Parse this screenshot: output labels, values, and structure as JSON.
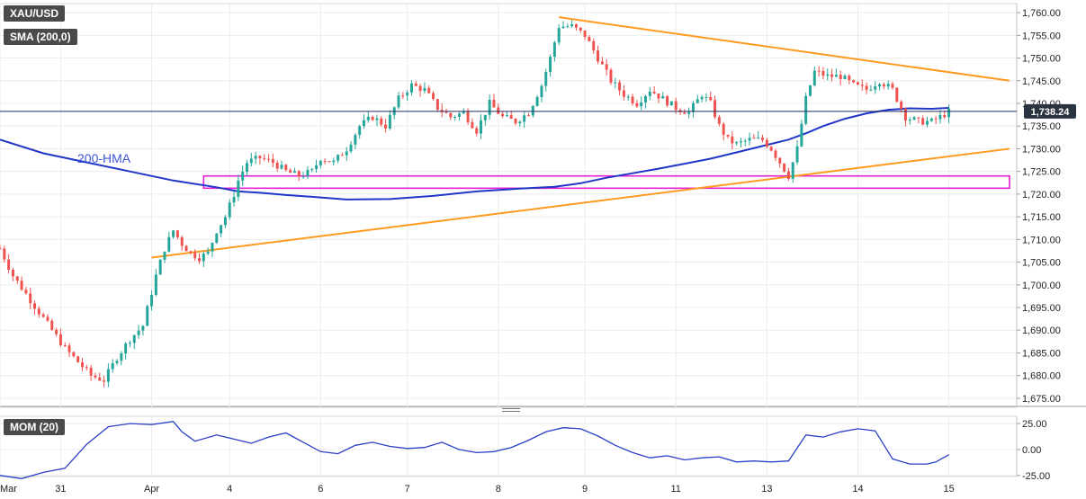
{
  "header": {
    "symbol": "XAU/USD",
    "indicator": "SMA (200,0)",
    "momentum": "MOM (20)"
  },
  "annotations": {
    "hma_label": "200-HMA",
    "last_price": "1,738.24"
  },
  "colors": {
    "up": "#26a69a",
    "down": "#ef5350",
    "hma": "#1f36c7",
    "trendline": "#ff9a1f",
    "zone": "#e61ed6",
    "momentum_line": "#2b3fc7",
    "price_line": "#1f2a66",
    "last_price_bg": "#2a3340"
  },
  "chart_data": [
    {
      "type": "candlestick",
      "series_name": "XAU/USD",
      "ylim": [
        1673,
        1762
      ],
      "y_ticks": [
        "1,760.00",
        "1,755.00",
        "1,750.00",
        "1,745.00",
        "1,740.00",
        "1,735.00",
        "1,730.00",
        "1,725.00",
        "1,720.00",
        "1,715.00",
        "1,710.00",
        "1,705.00",
        "1,700.00",
        "1,695.00",
        "1,690.00",
        "1,685.00",
        "1,680.00",
        "1,675.00"
      ],
      "x_labels": [
        "Mar",
        "31",
        "Apr",
        "4",
        "6",
        "7",
        "8",
        "9",
        "11",
        "13",
        "14",
        "15"
      ],
      "last_price": 1738.24,
      "price_path": [
        [
          0,
          1708
        ],
        [
          3,
          1702
        ],
        [
          6,
          1698
        ],
        [
          9,
          1694
        ],
        [
          12,
          1690
        ],
        [
          15,
          1686
        ],
        [
          18,
          1683
        ],
        [
          21,
          1680
        ],
        [
          24,
          1679
        ],
        [
          27,
          1684
        ],
        [
          30,
          1688
        ],
        [
          33,
          1691
        ],
        [
          36,
          1702
        ],
        [
          38,
          1708
        ],
        [
          40,
          1712
        ],
        [
          42,
          1709
        ],
        [
          44,
          1707
        ],
        [
          46,
          1706
        ],
        [
          48,
          1707
        ],
        [
          50,
          1712
        ],
        [
          52,
          1715
        ],
        [
          54,
          1720
        ],
        [
          55,
          1723
        ],
        [
          57,
          1727
        ],
        [
          60,
          1728
        ],
        [
          63,
          1727
        ],
        [
          66,
          1725
        ],
        [
          69,
          1724
        ],
        [
          72,
          1725
        ],
        [
          74,
          1728
        ],
        [
          77,
          1727
        ],
        [
          80,
          1730
        ],
        [
          83,
          1735
        ],
        [
          86,
          1737
        ],
        [
          89,
          1735
        ],
        [
          92,
          1741
        ],
        [
          95,
          1744
        ],
        [
          98,
          1743
        ],
        [
          101,
          1739
        ],
        [
          104,
          1737
        ],
        [
          107,
          1738
        ],
        [
          110,
          1734
        ],
        [
          113,
          1740
        ],
        [
          116,
          1737
        ],
        [
          119,
          1736
        ],
        [
          122,
          1738
        ],
        [
          125,
          1744
        ],
        [
          127,
          1750
        ],
        [
          129,
          1757
        ],
        [
          132,
          1757
        ],
        [
          135,
          1755
        ],
        [
          138,
          1750
        ],
        [
          141,
          1745
        ],
        [
          144,
          1742
        ],
        [
          147,
          1740
        ],
        [
          150,
          1743
        ],
        [
          153,
          1741
        ],
        [
          156,
          1739
        ],
        [
          159,
          1738
        ],
        [
          162,
          1742
        ],
        [
          164,
          1740
        ],
        [
          166,
          1735
        ],
        [
          168,
          1732
        ],
        [
          170,
          1731
        ],
        [
          173,
          1732
        ],
        [
          176,
          1732
        ],
        [
          178,
          1730
        ],
        [
          180,
          1727
        ],
        [
          182,
          1724
        ],
        [
          184,
          1730
        ],
        [
          186,
          1741
        ],
        [
          188,
          1747
        ],
        [
          191,
          1746
        ],
        [
          194,
          1746
        ],
        [
          197,
          1744
        ],
        [
          200,
          1743
        ],
        [
          203,
          1745
        ],
        [
          206,
          1743
        ],
        [
          209,
          1737
        ],
        [
          212,
          1736
        ],
        [
          215,
          1736
        ],
        [
          217,
          1737
        ],
        [
          219,
          1738.2
        ]
      ],
      "hma_path": [
        [
          0,
          1732
        ],
        [
          10,
          1729
        ],
        [
          20,
          1727
        ],
        [
          30,
          1725
        ],
        [
          40,
          1723
        ],
        [
          50,
          1721.5
        ],
        [
          55,
          1720.6
        ],
        [
          60,
          1720.3
        ],
        [
          66,
          1719.8
        ],
        [
          72,
          1719.4
        ],
        [
          80,
          1718.8
        ],
        [
          90,
          1718.9
        ],
        [
          100,
          1719.6
        ],
        [
          110,
          1720.6
        ],
        [
          120,
          1721.2
        ],
        [
          128,
          1721.6
        ],
        [
          134,
          1722.4
        ],
        [
          140,
          1723.6
        ],
        [
          146,
          1724.6
        ],
        [
          152,
          1725.6
        ],
        [
          158,
          1726.7
        ],
        [
          164,
          1727.8
        ],
        [
          170,
          1729.2
        ],
        [
          176,
          1730.6
        ],
        [
          182,
          1732.0
        ],
        [
          186,
          1733.4
        ],
        [
          190,
          1735.0
        ],
        [
          195,
          1736.6
        ],
        [
          200,
          1737.8
        ],
        [
          205,
          1738.6
        ],
        [
          210,
          1738.9
        ],
        [
          215,
          1738.8
        ],
        [
          219,
          1739.0
        ]
      ],
      "lines": [
        {
          "name": "resistance",
          "from": [
            129,
            1759
          ],
          "to": [
            233,
            1745
          ]
        },
        {
          "name": "support",
          "from": [
            35,
            1706
          ],
          "to": [
            233,
            1730
          ]
        }
      ],
      "zones": [
        {
          "name": "support-zone",
          "x0": 47,
          "x1": 233,
          "y0": 1721.3,
          "y1": 1724.0
        }
      ]
    },
    {
      "type": "line",
      "series_name": "MOM (20)",
      "ylim": [
        -26,
        32
      ],
      "y_ticks": [
        "25.00",
        "0.00",
        "-25.00"
      ],
      "values": [
        [
          0,
          -25
        ],
        [
          5,
          -28
        ],
        [
          10,
          -22
        ],
        [
          15,
          -18
        ],
        [
          20,
          5
        ],
        [
          25,
          22
        ],
        [
          30,
          25
        ],
        [
          35,
          24
        ],
        [
          40,
          27
        ],
        [
          42,
          17
        ],
        [
          45,
          8
        ],
        [
          50,
          14
        ],
        [
          54,
          10
        ],
        [
          58,
          6
        ],
        [
          62,
          12
        ],
        [
          66,
          16
        ],
        [
          70,
          7
        ],
        [
          74,
          -2
        ],
        [
          78,
          -4
        ],
        [
          82,
          4
        ],
        [
          86,
          7
        ],
        [
          90,
          3
        ],
        [
          94,
          1
        ],
        [
          98,
          2
        ],
        [
          102,
          7
        ],
        [
          106,
          0
        ],
        [
          110,
          -3
        ],
        [
          114,
          -2
        ],
        [
          118,
          2
        ],
        [
          122,
          9
        ],
        [
          126,
          17
        ],
        [
          130,
          21
        ],
        [
          134,
          20
        ],
        [
          138,
          13
        ],
        [
          142,
          4
        ],
        [
          146,
          -3
        ],
        [
          150,
          -8
        ],
        [
          154,
          -6
        ],
        [
          158,
          -10
        ],
        [
          162,
          -8
        ],
        [
          166,
          -7
        ],
        [
          170,
          -12
        ],
        [
          174,
          -11
        ],
        [
          178,
          -12
        ],
        [
          182,
          -11
        ],
        [
          186,
          14
        ],
        [
          190,
          12
        ],
        [
          194,
          17
        ],
        [
          198,
          20
        ],
        [
          202,
          18
        ],
        [
          206,
          -9
        ],
        [
          210,
          -14
        ],
        [
          214,
          -14
        ],
        [
          216,
          -12
        ],
        [
          219,
          -5
        ]
      ]
    }
  ]
}
